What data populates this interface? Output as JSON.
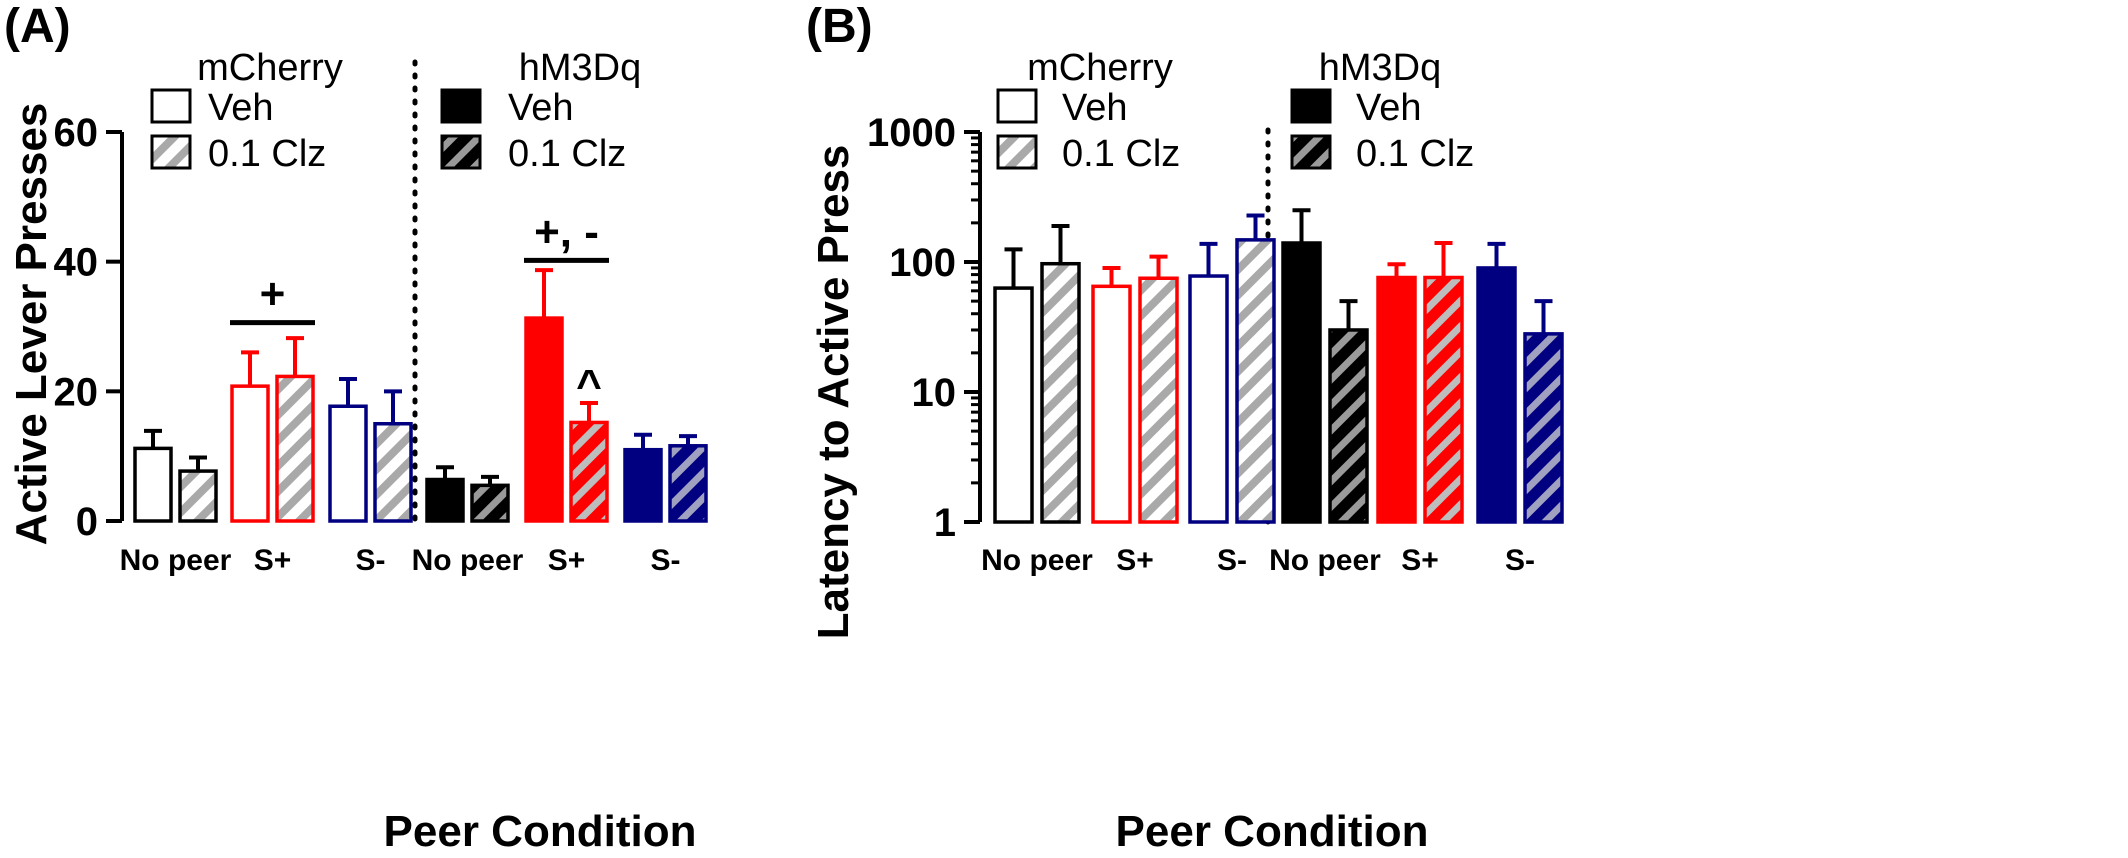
{
  "chart_data": [
    {
      "panel": "(A)",
      "type": "bar",
      "xlabel": "Peer Condition",
      "ylabel": "Active Lever Presses",
      "ylim": [
        0,
        60
      ],
      "yscale": "linear",
      "yticks": [
        "0",
        "20",
        "40",
        "60"
      ],
      "groups": [
        {
          "name": "mCherry",
          "categories": [
            "No peer",
            "S+",
            "S-"
          ],
          "colors": [
            "#000000",
            "#ff0000",
            "#000080"
          ],
          "filled": false
        },
        {
          "name": "hM3Dq",
          "categories": [
            "No peer",
            "S+",
            "S-"
          ],
          "colors": [
            "#000000",
            "#ff0000",
            "#000080"
          ],
          "filled": true
        }
      ],
      "series": [
        {
          "name": "Veh",
          "values": [
            11.2,
            20.8,
            17.7,
            6.4,
            31.3,
            11.0
          ],
          "errors": [
            2.7,
            5.2,
            4.2,
            1.9,
            7.4,
            2.3
          ]
        },
        {
          "name": "0.1 Clz",
          "values": [
            7.7,
            22.3,
            15.0,
            5.5,
            15.2,
            11.6
          ],
          "errors": [
            2.1,
            5.9,
            5.0,
            1.3,
            3.0,
            1.5
          ]
        }
      ],
      "annotations": [
        {
          "text": "+",
          "bar_group": 1,
          "y": 30.6
        },
        {
          "text": "+, -",
          "bar_group": 4,
          "y": 40.2
        },
        {
          "text": "^",
          "over": "hM3Dq S+ 0.1 Clz",
          "y": 20.5
        }
      ]
    },
    {
      "panel": "(B)",
      "type": "bar",
      "xlabel": "Peer Condition",
      "ylabel": "Latency to Active Press",
      "ylim": [
        1,
        1000
      ],
      "yscale": "log",
      "yticks": [
        "1",
        "10",
        "100",
        "1000"
      ],
      "groups": [
        {
          "name": "mCherry",
          "categories": [
            "No peer",
            "S+",
            "S-"
          ],
          "colors": [
            "#000000",
            "#ff0000",
            "#000080"
          ],
          "filled": false
        },
        {
          "name": "hM3Dq",
          "categories": [
            "No peer",
            "S+",
            "S-"
          ],
          "colors": [
            "#000000",
            "#ff0000",
            "#000080"
          ],
          "filled": true
        }
      ],
      "series": [
        {
          "name": "Veh",
          "values": [
            63,
            65,
            78,
            140,
            76,
            90
          ],
          "errors": [
            62,
            25,
            60,
            110,
            20,
            48
          ]
        },
        {
          "name": "0.1 Clz",
          "values": [
            97,
            75,
            148,
            30,
            76,
            28
          ],
          "errors": [
            92,
            35,
            80,
            20,
            64,
            22
          ]
        }
      ]
    }
  ],
  "legend": {
    "veh_label": "Veh",
    "clz_label": "0.1 Clz"
  }
}
